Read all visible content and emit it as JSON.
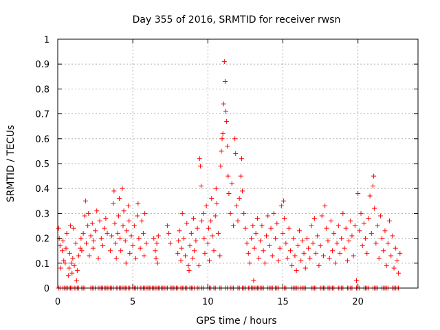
{
  "chart_data": {
    "type": "scatter",
    "title": "Day 355 of 2016, SRMTID for receiver rwsn",
    "xlabel": "GPS time / hours",
    "ylabel": "SRMTID / TECUs",
    "xlim": [
      0,
      24
    ],
    "ylim": [
      0,
      1
    ],
    "x_ticks": [
      0,
      5,
      10,
      15,
      20
    ],
    "x_tick_labels": [
      "0",
      "5",
      "10",
      "15",
      "20"
    ],
    "y_ticks": [
      0,
      0.1,
      0.2,
      0.3,
      0.4,
      0.5,
      0.6,
      0.7,
      0.8,
      0.9,
      1
    ],
    "y_tick_labels": [
      "0",
      "0.1",
      "0.2",
      "0.3",
      "0.4",
      "0.5",
      "0.6",
      "0.7",
      "0.8",
      "0.9",
      "1"
    ],
    "grid": true,
    "marker": "plus",
    "marker_color": "#ff0000",
    "series": [
      {
        "name": "SRMTID",
        "points": [
          [
            0.05,
            0.24
          ],
          [
            0.1,
            0.2
          ],
          [
            0.15,
            0.17
          ],
          [
            0.2,
            0.08
          ],
          [
            0.3,
            0.15
          ],
          [
            0.35,
            0.19
          ],
          [
            0.4,
            0.11
          ],
          [
            0.5,
            0.1
          ],
          [
            0.55,
            0.16
          ],
          [
            0.6,
            0.22
          ],
          [
            0.7,
            0.05
          ],
          [
            0.75,
            0.08
          ],
          [
            0.8,
            0.14
          ],
          [
            0.85,
            0.25
          ],
          [
            0.9,
            0.1
          ],
          [
            0.95,
            0.06
          ],
          [
            1.0,
            0.12
          ],
          [
            1.05,
            0.24
          ],
          [
            1.1,
            0.09
          ],
          [
            1.2,
            0.18
          ],
          [
            1.25,
            0.03
          ],
          [
            1.3,
            0.07
          ],
          [
            1.4,
            0.13
          ],
          [
            1.5,
            0.16
          ],
          [
            1.55,
            0.2
          ],
          [
            1.6,
            0.15
          ],
          [
            1.7,
            0.22
          ],
          [
            1.8,
            0.29
          ],
          [
            1.85,
            0.35
          ],
          [
            1.9,
            0.18
          ],
          [
            2.0,
            0.25
          ],
          [
            2.05,
            0.3
          ],
          [
            2.1,
            0.13
          ],
          [
            2.2,
            0.21
          ],
          [
            2.3,
            0.26
          ],
          [
            2.35,
            0.16
          ],
          [
            2.4,
            0.19
          ],
          [
            2.5,
            0.23
          ],
          [
            2.6,
            0.31
          ],
          [
            2.7,
            0.12
          ],
          [
            2.8,
            0.27
          ],
          [
            2.9,
            0.2
          ],
          [
            3.0,
            0.17
          ],
          [
            3.1,
            0.24
          ],
          [
            3.2,
            0.28
          ],
          [
            3.3,
            0.22
          ],
          [
            3.5,
            0.15
          ],
          [
            3.6,
            0.21
          ],
          [
            3.7,
            0.34
          ],
          [
            3.75,
            0.39
          ],
          [
            3.8,
            0.26
          ],
          [
            3.85,
            0.18
          ],
          [
            3.9,
            0.12
          ],
          [
            4.0,
            0.22
          ],
          [
            4.05,
            0.29
          ],
          [
            4.1,
            0.36
          ],
          [
            4.15,
            0.2
          ],
          [
            4.2,
            0.15
          ],
          [
            4.3,
            0.4
          ],
          [
            4.35,
            0.25
          ],
          [
            4.4,
            0.31
          ],
          [
            4.5,
            0.19
          ],
          [
            4.55,
            0.1
          ],
          [
            4.6,
            0.23
          ],
          [
            4.7,
            0.33
          ],
          [
            4.75,
            0.27
          ],
          [
            4.8,
            0.14
          ],
          [
            4.9,
            0.21
          ],
          [
            5.0,
            0.17
          ],
          [
            5.1,
            0.25
          ],
          [
            5.2,
            0.12
          ],
          [
            5.3,
            0.29
          ],
          [
            5.35,
            0.34
          ],
          [
            5.4,
            0.2
          ],
          [
            5.5,
            0.16
          ],
          [
            5.6,
            0.27
          ],
          [
            5.7,
            0.22
          ],
          [
            5.75,
            0.13
          ],
          [
            5.8,
            0.3
          ],
          [
            5.9,
            0.18
          ],
          [
            6.4,
            0.2
          ],
          [
            6.5,
            0.15
          ],
          [
            6.55,
            0.12
          ],
          [
            6.6,
            0.18
          ],
          [
            6.65,
            0.1
          ],
          [
            6.7,
            0.21
          ],
          [
            7.3,
            0.25
          ],
          [
            7.4,
            0.22
          ],
          [
            7.5,
            0.18
          ],
          [
            8.0,
            0.14
          ],
          [
            8.05,
            0.19
          ],
          [
            8.1,
            0.23
          ],
          [
            8.2,
            0.11
          ],
          [
            8.25,
            0.16
          ],
          [
            8.3,
            0.3
          ],
          [
            8.4,
            0.2
          ],
          [
            8.5,
            0.13
          ],
          [
            8.6,
            0.26
          ],
          [
            8.7,
            0.09
          ],
          [
            8.75,
            0.07
          ],
          [
            8.8,
            0.17
          ],
          [
            8.9,
            0.22
          ],
          [
            9.0,
            0.12
          ],
          [
            9.05,
            0.28
          ],
          [
            9.1,
            0.15
          ],
          [
            9.2,
            0.19
          ],
          [
            9.3,
            0.24
          ],
          [
            9.4,
            0.09
          ],
          [
            9.45,
            0.52
          ],
          [
            9.5,
            0.49
          ],
          [
            9.55,
            0.41
          ],
          [
            9.6,
            0.27
          ],
          [
            9.7,
            0.3
          ],
          [
            9.75,
            0.2
          ],
          [
            9.8,
            0.14
          ],
          [
            9.9,
            0.33
          ],
          [
            10.0,
            0.18
          ],
          [
            10.05,
            0.24
          ],
          [
            10.1,
            0.11
          ],
          [
            10.2,
            0.27
          ],
          [
            10.25,
            0.36
          ],
          [
            10.3,
            0.21
          ],
          [
            10.4,
            0.15
          ],
          [
            10.5,
            0.29
          ],
          [
            10.55,
            0.4
          ],
          [
            10.6,
            0.34
          ],
          [
            10.7,
            0.22
          ],
          [
            10.8,
            0.13
          ],
          [
            10.85,
            0.49
          ],
          [
            10.9,
            0.55
          ],
          [
            10.95,
            0.6
          ],
          [
            11.0,
            0.62
          ],
          [
            11.05,
            0.74
          ],
          [
            11.1,
            0.91
          ],
          [
            11.15,
            0.83
          ],
          [
            11.2,
            0.71
          ],
          [
            11.25,
            0.67
          ],
          [
            11.3,
            0.57
          ],
          [
            11.35,
            0.45
          ],
          [
            11.4,
            0.38
          ],
          [
            11.5,
            0.3
          ],
          [
            11.6,
            0.42
          ],
          [
            11.7,
            0.25
          ],
          [
            11.8,
            0.6
          ],
          [
            11.85,
            0.54
          ],
          [
            11.9,
            0.33
          ],
          [
            12.0,
            0.27
          ],
          [
            12.1,
            0.36
          ],
          [
            12.2,
            0.45
          ],
          [
            12.25,
            0.52
          ],
          [
            12.3,
            0.39
          ],
          [
            12.4,
            0.3
          ],
          [
            12.5,
            0.24
          ],
          [
            12.6,
            0.18
          ],
          [
            12.7,
            0.14
          ],
          [
            12.8,
            0.1
          ],
          [
            12.9,
            0.2
          ],
          [
            13.0,
            0.25
          ],
          [
            13.05,
            0.03
          ],
          [
            13.1,
            0.16
          ],
          [
            13.2,
            0.22
          ],
          [
            13.3,
            0.28
          ],
          [
            13.4,
            0.12
          ],
          [
            13.5,
            0.19
          ],
          [
            13.6,
            0.25
          ],
          [
            13.7,
            0.15
          ],
          [
            13.8,
            0.1
          ],
          [
            13.9,
            0.21
          ],
          [
            14.0,
            0.29
          ],
          [
            14.1,
            0.17
          ],
          [
            14.2,
            0.24
          ],
          [
            14.3,
            0.13
          ],
          [
            14.4,
            0.3
          ],
          [
            14.5,
            0.2
          ],
          [
            14.6,
            0.26
          ],
          [
            14.7,
            0.11
          ],
          [
            14.8,
            0.16
          ],
          [
            14.9,
            0.33
          ],
          [
            15.0,
            0.22
          ],
          [
            15.05,
            0.35
          ],
          [
            15.1,
            0.28
          ],
          [
            15.2,
            0.18
          ],
          [
            15.3,
            0.12
          ],
          [
            15.4,
            0.24
          ],
          [
            15.5,
            0.15
          ],
          [
            15.6,
            0.09
          ],
          [
            15.7,
            0.2
          ],
          [
            15.8,
            0.13
          ],
          [
            15.9,
            0.07
          ],
          [
            16.0,
            0.17
          ],
          [
            16.1,
            0.23
          ],
          [
            16.2,
            0.11
          ],
          [
            16.3,
            0.19
          ],
          [
            16.4,
            0.14
          ],
          [
            16.5,
            0.08
          ],
          [
            16.6,
            0.2
          ],
          [
            16.7,
            0.16
          ],
          [
            16.8,
            0.12
          ],
          [
            16.9,
            0.25
          ],
          [
            17.0,
            0.18
          ],
          [
            17.1,
            0.28
          ],
          [
            17.2,
            0.14
          ],
          [
            17.3,
            0.21
          ],
          [
            17.4,
            0.09
          ],
          [
            17.5,
            0.17
          ],
          [
            17.6,
            0.29
          ],
          [
            17.7,
            0.13
          ],
          [
            17.8,
            0.33
          ],
          [
            17.9,
            0.24
          ],
          [
            18.0,
            0.19
          ],
          [
            18.1,
            0.12
          ],
          [
            18.2,
            0.27
          ],
          [
            18.3,
            0.15
          ],
          [
            18.4,
            0.22
          ],
          [
            18.5,
            0.1
          ],
          [
            18.6,
            0.18
          ],
          [
            18.7,
            0.25
          ],
          [
            18.8,
            0.14
          ],
          [
            18.9,
            0.2
          ],
          [
            19.0,
            0.3
          ],
          [
            19.1,
            0.16
          ],
          [
            19.2,
            0.24
          ],
          [
            19.3,
            0.11
          ],
          [
            19.4,
            0.19
          ],
          [
            19.5,
            0.27
          ],
          [
            19.6,
            0.21
          ],
          [
            19.7,
            0.13
          ],
          [
            19.8,
            0.25
          ],
          [
            19.9,
            0.03
          ],
          [
            20.0,
            0.38
          ],
          [
            20.1,
            0.23
          ],
          [
            20.2,
            0.3
          ],
          [
            20.3,
            0.17
          ],
          [
            20.4,
            0.26
          ],
          [
            20.5,
            0.2
          ],
          [
            20.6,
            0.14
          ],
          [
            20.7,
            0.28
          ],
          [
            20.8,
            0.37
          ],
          [
            20.9,
            0.22
          ],
          [
            21.0,
            0.41
          ],
          [
            21.05,
            0.45
          ],
          [
            21.1,
            0.32
          ],
          [
            21.2,
            0.18
          ],
          [
            21.3,
            0.25
          ],
          [
            21.4,
            0.12
          ],
          [
            21.5,
            0.29
          ],
          [
            21.6,
            0.2
          ],
          [
            21.7,
            0.15
          ],
          [
            21.8,
            0.23
          ],
          [
            21.9,
            0.09
          ],
          [
            22.0,
            0.18
          ],
          [
            22.1,
            0.27
          ],
          [
            22.2,
            0.13
          ],
          [
            22.3,
            0.21
          ],
          [
            22.4,
            0.08
          ],
          [
            22.5,
            0.16
          ],
          [
            22.6,
            0.11
          ],
          [
            22.7,
            0.06
          ],
          [
            22.8,
            0.14
          ]
        ]
      }
    ],
    "zero_value_segments": [
      [
        0.05,
        0.15
      ],
      [
        0.35,
        0.45
      ],
      [
        0.55,
        0.95
      ],
      [
        1.1,
        1.4
      ],
      [
        1.6,
        1.8
      ],
      [
        2.2,
        2.5
      ],
      [
        2.7,
        3.3
      ],
      [
        3.4,
        3.7
      ],
      [
        3.9,
        4.8
      ],
      [
        5.0,
        5.3
      ],
      [
        5.5,
        7.3
      ],
      [
        7.5,
        8.0
      ],
      [
        8.2,
        8.6
      ],
      [
        8.8,
        9.1
      ],
      [
        9.3,
        9.4
      ],
      [
        9.6,
        9.7
      ],
      [
        10.0,
        10.2
      ],
      [
        10.4,
        10.5
      ],
      [
        10.8,
        10.9
      ],
      [
        11.2,
        11.3
      ],
      [
        11.5,
        11.7
      ],
      [
        12.0,
        12.1
      ],
      [
        12.3,
        12.5
      ],
      [
        12.7,
        13.7
      ],
      [
        14.0,
        14.3
      ],
      [
        14.5,
        14.7
      ],
      [
        15.0,
        15.2
      ],
      [
        15.6,
        16.0
      ],
      [
        16.2,
        16.5
      ],
      [
        16.9,
        17.2
      ],
      [
        17.5,
        17.8
      ],
      [
        18.0,
        18.4
      ],
      [
        18.7,
        19.0
      ],
      [
        19.3,
        19.6
      ],
      [
        19.9,
        20.1
      ],
      [
        20.4,
        20.7
      ],
      [
        21.0,
        21.3
      ],
      [
        21.6,
        22.0
      ],
      [
        22.3,
        22.7
      ]
    ]
  }
}
